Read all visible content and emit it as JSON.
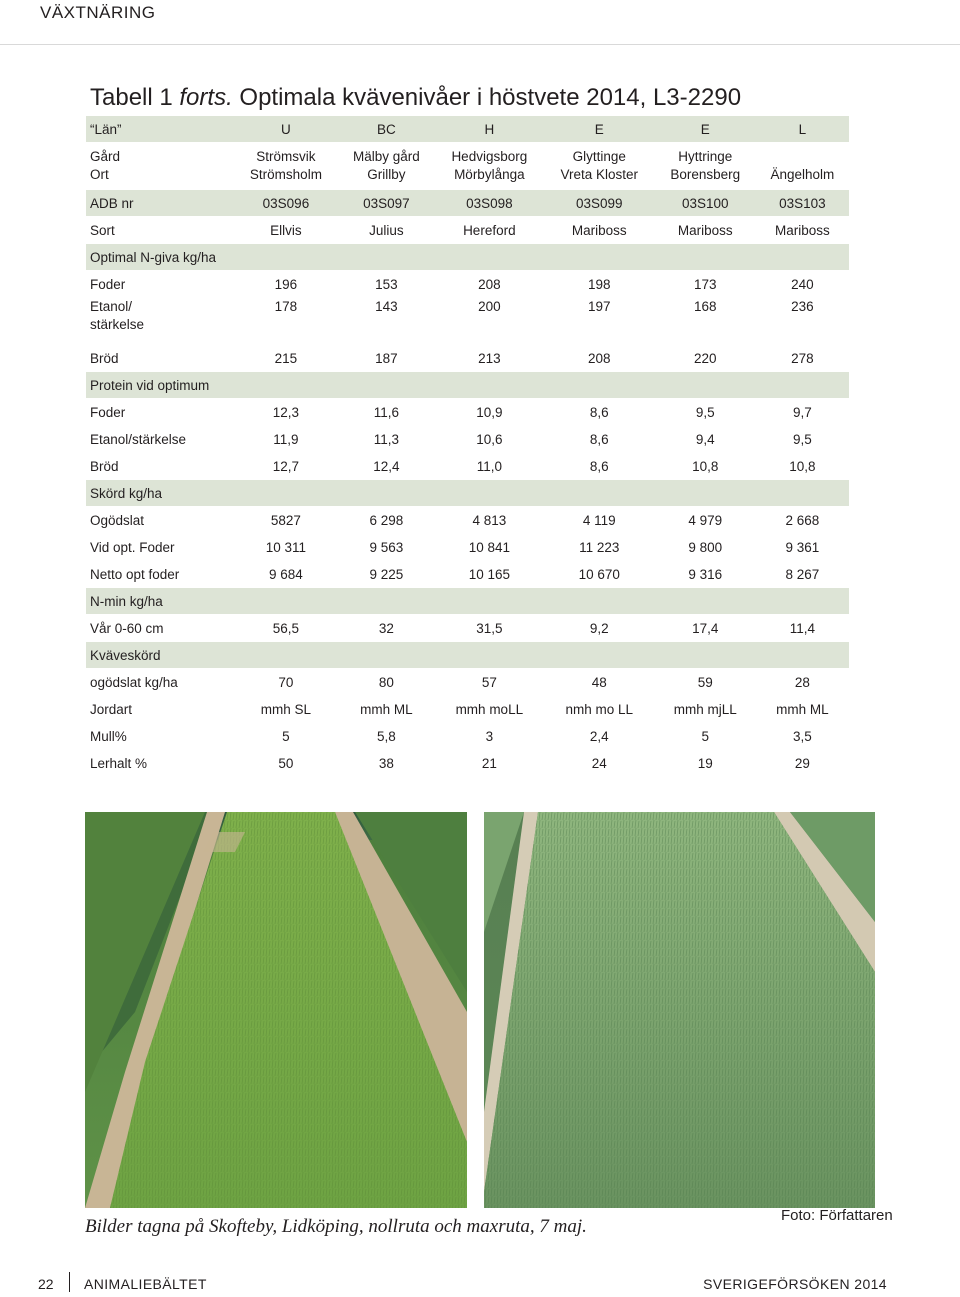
{
  "header": {
    "section": "VÄXTNÄRING"
  },
  "table": {
    "title_prefix": "Tabell 1 ",
    "title_italic": "forts.",
    "title_rest": " Optimala kvävenivåer i höstvete 2014, L3-2290",
    "rows": [
      {
        "style": "shade",
        "h": 27,
        "label": "“Län”",
        "cells": [
          "U",
          "BC",
          "H",
          "E",
          "E",
          "L"
        ]
      },
      {
        "style": "plain",
        "h": 46,
        "label": "Gård\nOrt",
        "cells": [
          "Strömsvik\nStrömsholm",
          "Mälby gård\nGrillby",
          "Hedvigsborg\nMörbylånga",
          "Glyttinge\nVreta Kloster",
          "Hyttringe\nBorensberg",
          "\nÄngelholm"
        ]
      },
      {
        "style": "shade",
        "h": 27,
        "label": "ADB nr",
        "cells": [
          "03S096",
          "03S097",
          "03S098",
          "03S099",
          "03S100",
          "03S103"
        ]
      },
      {
        "style": "plain",
        "h": 27,
        "label": "Sort",
        "cells": [
          "Ellvis",
          "Julius",
          "Hereford",
          "Mariboss",
          "Mariboss",
          "Mariboss"
        ]
      },
      {
        "style": "shade",
        "h": 27,
        "label": "Optimal  N-giva kg/ha",
        "cells": [
          "",
          "",
          "",
          "",
          "",
          ""
        ]
      },
      {
        "style": "plain",
        "h": 27,
        "label": "Foder",
        "cells": [
          "196",
          "153",
          "208",
          "198",
          "173",
          "240"
        ]
      },
      {
        "style": "plain",
        "h": 46,
        "label": "Etanol/\nstärkelse",
        "cells": [
          "178",
          "143",
          "200",
          "197",
          "168",
          "236"
        ],
        "top": true
      },
      {
        "style": "plain",
        "h": 27,
        "label": "Bröd",
        "cells": [
          "215",
          "187",
          "213",
          "208",
          "220",
          "278"
        ]
      },
      {
        "style": "shade",
        "h": 27,
        "label": "Protein vid optimum",
        "cells": [
          "",
          "",
          "",
          "",
          "",
          ""
        ]
      },
      {
        "style": "plain",
        "h": 27,
        "label": "Foder",
        "cells": [
          "12,3",
          "11,6",
          "10,9",
          "8,6",
          "9,5",
          "9,7"
        ]
      },
      {
        "style": "plain",
        "h": 27,
        "label": "Etanol/stärkelse",
        "cells": [
          "11,9",
          "11,3",
          "10,6",
          "8,6",
          "9,4",
          "9,5"
        ]
      },
      {
        "style": "plain",
        "h": 27,
        "label": "Bröd",
        "cells": [
          "12,7",
          "12,4",
          "11,0",
          "8,6",
          "10,8",
          "10,8"
        ]
      },
      {
        "style": "shade",
        "h": 27,
        "label": "Skörd kg/ha",
        "cells": [
          "",
          "",
          "",
          "",
          "",
          ""
        ]
      },
      {
        "style": "plain",
        "h": 27,
        "label": "Ogödslat",
        "cells": [
          "5827",
          "6 298",
          "4 813",
          "4 119",
          "4 979",
          "2 668"
        ]
      },
      {
        "style": "plain",
        "h": 27,
        "label": "Vid opt. Foder",
        "cells": [
          "10 311",
          "9 563",
          "10 841",
          "11 223",
          "9 800",
          "9 361"
        ]
      },
      {
        "style": "plain",
        "h": 27,
        "label": "Netto opt foder",
        "cells": [
          "9 684",
          "9 225",
          "10 165",
          "10 670",
          "9 316",
          "8 267"
        ]
      },
      {
        "style": "shade",
        "h": 27,
        "label": "N-min kg/ha",
        "cells": [
          "",
          "",
          "",
          "",
          "",
          ""
        ]
      },
      {
        "style": "plain",
        "h": 27,
        "label": "Vår 0-60 cm",
        "cells": [
          "56,5",
          "32",
          "31,5",
          "9,2",
          "17,4",
          "11,4"
        ]
      },
      {
        "style": "shade",
        "h": 27,
        "label": "Kväveskörd",
        "cells": [
          "",
          "",
          "",
          "",
          "",
          ""
        ]
      },
      {
        "style": "plain",
        "h": 27,
        "label": "ogödslat kg/ha",
        "cells": [
          "70",
          "80",
          "57",
          "48",
          "59",
          "28"
        ]
      },
      {
        "style": "plain",
        "h": 27,
        "label": "Jordart",
        "cells": [
          "mmh SL",
          "mmh ML",
          "mmh moLL",
          "nmh mo LL",
          "mmh mjLL",
          "mmh ML"
        ]
      },
      {
        "style": "plain",
        "h": 27,
        "label": "Mull%",
        "cells": [
          "5",
          "5,8",
          "3",
          "2,4",
          "5",
          "3,5"
        ]
      },
      {
        "style": "plain",
        "h": 27,
        "label": "Lerhalt %",
        "cells": [
          "50",
          "38",
          "21",
          "24",
          "19",
          "29"
        ]
      }
    ]
  },
  "photos": {
    "caption": "Bilder tagna på Skofteby, Lidköping, nollruta och maxruta, 7 maj.",
    "credit": "Foto: Författaren"
  },
  "footer": {
    "page_number": "22",
    "publication": "ANIMALIEBÄLTET",
    "magazine": "SVERIGEFÖRSÖKEN 2014"
  }
}
